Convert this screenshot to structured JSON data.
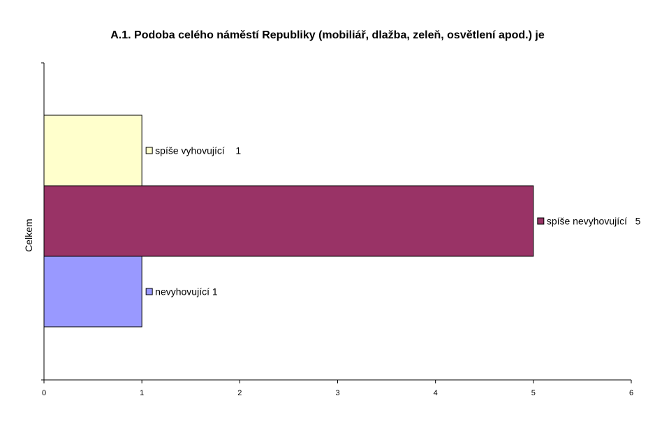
{
  "chart_data": {
    "type": "bar",
    "orientation": "horizontal",
    "title": "A.1. Podoba celého náměstí Republiky (mobiliář, dlažba, zeleň, osvětlení apod.) je",
    "category_label": "Celkem",
    "xlim": [
      0,
      6
    ],
    "x_ticks": [
      "0",
      "1",
      "2",
      "3",
      "4",
      "5",
      "6"
    ],
    "grid": false,
    "series": [
      {
        "name": "spíše vyhovující",
        "value": 1,
        "color": "#ffffcc",
        "label": "spíše vyhovující    1"
      },
      {
        "name": "spíše nevyhovující",
        "value": 5,
        "color": "#993366",
        "label": "spíše nevyhovující   5"
      },
      {
        "name": "nevyhovující",
        "value": 1,
        "color": "#9999ff",
        "label": "nevyhovující 1"
      }
    ]
  }
}
